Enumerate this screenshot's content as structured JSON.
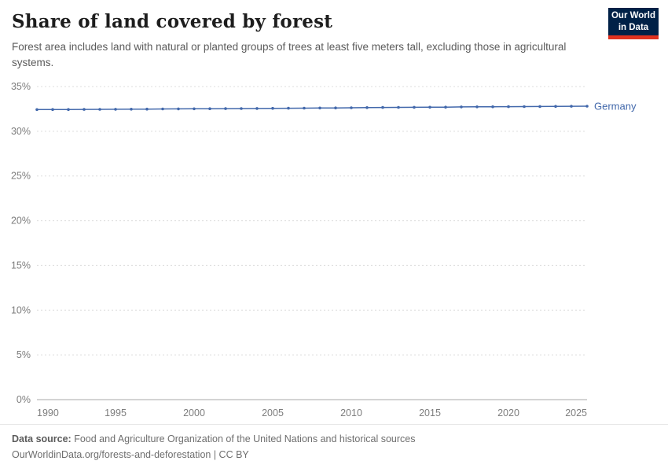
{
  "header": {
    "title": "Share of land covered by forest",
    "subtitle": "Forest area includes land with natural or planted groups of trees at least five meters tall, excluding those in agricultural systems.",
    "logo": {
      "line1": "Our World",
      "line2": "in Data"
    }
  },
  "chart_data": {
    "type": "line",
    "title": "Share of land covered by forest",
    "xlabel": "",
    "ylabel": "",
    "xlim": [
      1990,
      2025
    ],
    "ylim": [
      0,
      35
    ],
    "x_ticks": [
      1990,
      1995,
      2000,
      2005,
      2010,
      2015,
      2020,
      2025
    ],
    "y_ticks": [
      "0%",
      "5%",
      "10%",
      "15%",
      "20%",
      "25%",
      "30%",
      "35%"
    ],
    "y_tick_values": [
      0,
      5,
      10,
      15,
      20,
      25,
      30,
      35
    ],
    "grid": "horizontal-dashed",
    "legend_position": "end-of-line-label",
    "series": [
      {
        "name": "Germany",
        "color": "#4268ab",
        "x": [
          1990,
          1991,
          1992,
          1993,
          1994,
          1995,
          1996,
          1997,
          1998,
          1999,
          2000,
          2001,
          2002,
          2003,
          2004,
          2005,
          2006,
          2007,
          2008,
          2009,
          2010,
          2011,
          2012,
          2013,
          2014,
          2015,
          2016,
          2017,
          2018,
          2019,
          2020,
          2021,
          2022,
          2023,
          2024,
          2025
        ],
        "values": [
          32.42,
          32.43,
          32.43,
          32.44,
          32.45,
          32.46,
          32.47,
          32.48,
          32.49,
          32.5,
          32.51,
          32.52,
          32.53,
          32.54,
          32.55,
          32.56,
          32.57,
          32.58,
          32.6,
          32.61,
          32.63,
          32.64,
          32.66,
          32.67,
          32.68,
          32.69,
          32.7,
          32.72,
          32.73,
          32.74,
          32.75,
          32.76,
          32.77,
          32.78,
          32.79,
          32.8
        ]
      }
    ]
  },
  "footer": {
    "source_label": "Data source:",
    "source_text": " Food and Agriculture Organization of the United Nations and historical sources",
    "link_text": "OurWorldinData.org/forests-and-deforestation | CC BY"
  }
}
